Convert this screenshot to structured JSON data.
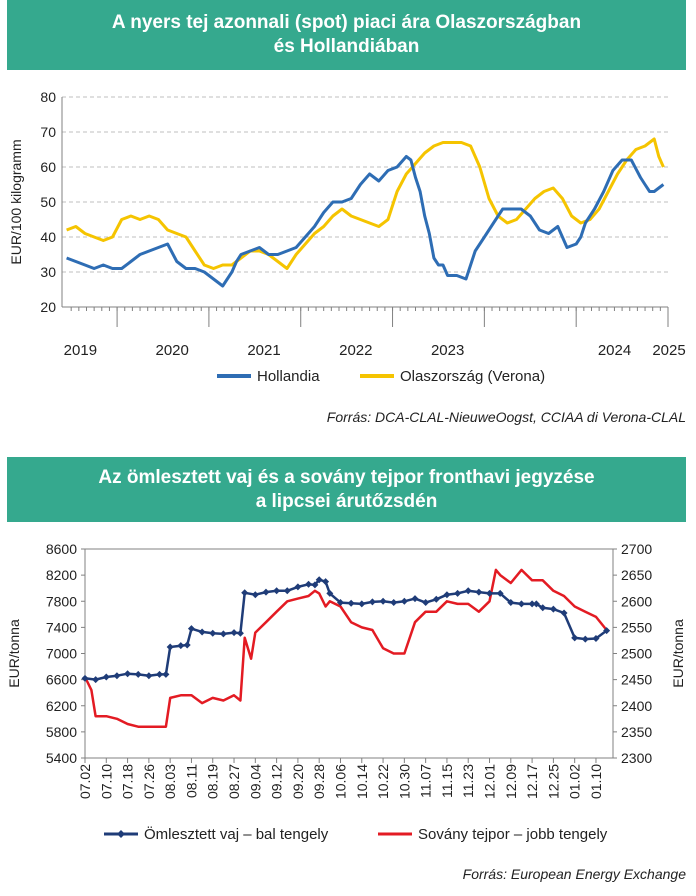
{
  "chart_data": [
    {
      "type": "line",
      "title": "A nyers tej azonnali (spot) piaci ára Olaszországban és Hollandiában",
      "title_lines": [
        "A nyers tej azonnali (spot) piaci ára Olaszországban",
        "és Hollandiában"
      ],
      "ylabel": "EUR/100 kilogramm",
      "ylim": [
        20,
        80
      ],
      "yticks": [
        20,
        30,
        40,
        50,
        60,
        70,
        80
      ],
      "x_labels": [
        "2019",
        "2020",
        "2021",
        "2022",
        "2023",
        "2024",
        "2025"
      ],
      "grid": true,
      "legend_position": "bottom",
      "source": "Forrás: DCA-CLAL-NieuweOogst, CCIAA di Verona-CLAL",
      "colors": {
        "Hollandia": "#2e6db4",
        "Olaszország (Verona)": "#f5c400"
      },
      "series": [
        {
          "name": "Hollandia",
          "x": [
            2018.45,
            2018.55,
            2018.65,
            2018.75,
            2018.85,
            2018.95,
            2019.05,
            2019.15,
            2019.25,
            2019.35,
            2019.45,
            2019.55,
            2019.65,
            2019.75,
            2019.85,
            2019.95,
            2020.05,
            2020.15,
            2020.25,
            2020.3,
            2020.35,
            2020.45,
            2020.55,
            2020.65,
            2020.75,
            2020.85,
            2020.95,
            2021.05,
            2021.15,
            2021.25,
            2021.35,
            2021.45,
            2021.55,
            2021.65,
            2021.75,
            2021.85,
            2021.95,
            2022.05,
            2022.15,
            2022.2,
            2022.25,
            2022.3,
            2022.35,
            2022.4,
            2022.45,
            2022.5,
            2022.55,
            2022.6,
            2022.7,
            2022.8,
            2022.9,
            2023.0,
            2023.1,
            2023.15,
            2023.2,
            2023.3,
            2023.4,
            2023.5,
            2023.6,
            2023.7,
            2023.8,
            2023.9,
            2024.0,
            2024.05,
            2024.1,
            2024.2,
            2024.3,
            2024.4,
            2024.5,
            2024.6,
            2024.7,
            2024.75,
            2024.8,
            2024.85,
            2024.9,
            2024.95
          ],
          "values": [
            34,
            33,
            32,
            31,
            32,
            31,
            31,
            33,
            35,
            36,
            37,
            38,
            33,
            31,
            31,
            30,
            28,
            26,
            30,
            33,
            35,
            36,
            37,
            35,
            35,
            36,
            37,
            40,
            43,
            47,
            50,
            50,
            51,
            55,
            58,
            56,
            59,
            60,
            63,
            62,
            57,
            53,
            46,
            41,
            34,
            32,
            32,
            29,
            29,
            28,
            36,
            40,
            44,
            46,
            48,
            48,
            48,
            46,
            42,
            41,
            43,
            37,
            38,
            40,
            44,
            48,
            53,
            59,
            62,
            62,
            57,
            55,
            53,
            53,
            54,
            55
          ]
        },
        {
          "name": "Olaszország (Verona)",
          "x": [
            2018.45,
            2018.55,
            2018.65,
            2018.75,
            2018.85,
            2018.95,
            2019.05,
            2019.15,
            2019.25,
            2019.35,
            2019.45,
            2019.55,
            2019.65,
            2019.75,
            2019.85,
            2019.95,
            2020.05,
            2020.15,
            2020.25,
            2020.35,
            2020.45,
            2020.55,
            2020.65,
            2020.75,
            2020.85,
            2020.95,
            2021.05,
            2021.15,
            2021.25,
            2021.35,
            2021.45,
            2021.55,
            2021.65,
            2021.75,
            2021.85,
            2021.95,
            2022.05,
            2022.15,
            2022.25,
            2022.35,
            2022.45,
            2022.55,
            2022.65,
            2022.75,
            2022.85,
            2022.95,
            2023.05,
            2023.15,
            2023.25,
            2023.35,
            2023.45,
            2023.55,
            2023.65,
            2023.75,
            2023.85,
            2023.95,
            2024.05,
            2024.15,
            2024.25,
            2024.35,
            2024.45,
            2024.55,
            2024.65,
            2024.75,
            2024.85,
            2024.9,
            2024.95
          ],
          "values": [
            42,
            43,
            41,
            40,
            39,
            40,
            45,
            46,
            45,
            46,
            45,
            42,
            41,
            40,
            36,
            32,
            31,
            32,
            32,
            34,
            36,
            36,
            35,
            33,
            31,
            35,
            38,
            41,
            43,
            46,
            48,
            46,
            45,
            44,
            43,
            45,
            53,
            58,
            61,
            64,
            66,
            67,
            67,
            67,
            66,
            60,
            51,
            46,
            44,
            45,
            48,
            51,
            53,
            54,
            51,
            46,
            44,
            45,
            48,
            53,
            58,
            62,
            65,
            66,
            68,
            63,
            60
          ]
        }
      ]
    },
    {
      "type": "line",
      "title": "Az ömlesztett vaj és a sovány tejpor fronthavi jegyzése a lipcsei árutőzsdén",
      "title_lines": [
        "Az ömlesztett vaj és a sovány tejpor fronthavi jegyzése",
        "a lipcsei árutőzsdén"
      ],
      "ylabel_left": "EUR/tonna",
      "ylabel_right": "EUR/tonna",
      "ylim_left": [
        5400,
        8600
      ],
      "yticks_left": [
        5400,
        5800,
        6200,
        6600,
        7000,
        7400,
        7800,
        8200,
        8600
      ],
      "ylim_right": [
        2300,
        2700
      ],
      "yticks_right": [
        2300,
        2350,
        2400,
        2450,
        2500,
        2550,
        2600,
        2650,
        2700
      ],
      "categories": [
        "07.02",
        "07.10",
        "07.18",
        "07.26",
        "08.03",
        "08.11",
        "08.19",
        "08.27",
        "09.04",
        "09.12",
        "09.20",
        "09.28",
        "10.06",
        "10.14",
        "10.22",
        "10.30",
        "11.07",
        "11.15",
        "11.23",
        "12.01",
        "12.09",
        "12.17",
        "12.25",
        "01.02",
        "01.10"
      ],
      "grid": false,
      "legend_position": "bottom",
      "source": "Forrás: European Energy Exchange",
      "colors": {
        "Ömlesztett vaj – bal tengely": "#1f3c78",
        "Sovány tejpor – jobb tengely": "#e31b23"
      },
      "series": [
        {
          "name": "Ömlesztett vaj – bal tengely",
          "axis": "left",
          "x": [
            0,
            0.5,
            1,
            1.5,
            2,
            2.5,
            3,
            3.5,
            3.8,
            4,
            4.5,
            4.8,
            5,
            5.5,
            6,
            6.5,
            7,
            7.3,
            7.5,
            8,
            8.5,
            9,
            9.5,
            10,
            10.5,
            10.8,
            11,
            11.3,
            11.5,
            12,
            12.5,
            13,
            13.5,
            14,
            14.5,
            15,
            15.5,
            16,
            16.5,
            17,
            17.5,
            18,
            18.5,
            19,
            19.5,
            20,
            20.5,
            21,
            21.2,
            21.5,
            22,
            22.5,
            23,
            23.5,
            24,
            24.5
          ],
          "values": [
            6620,
            6600,
            6640,
            6660,
            6690,
            6680,
            6660,
            6680,
            6680,
            7100,
            7120,
            7130,
            7380,
            7330,
            7310,
            7300,
            7320,
            7310,
            7930,
            7900,
            7940,
            7960,
            7960,
            8020,
            8060,
            8050,
            8130,
            8100,
            7920,
            7780,
            7770,
            7760,
            7790,
            7800,
            7780,
            7800,
            7840,
            7780,
            7830,
            7900,
            7920,
            7960,
            7940,
            7920,
            7920,
            7780,
            7760,
            7760,
            7760,
            7700,
            7680,
            7620,
            7240,
            7220,
            7230,
            7350
          ]
        },
        {
          "name": "Sovány tejpor – jobb tengely",
          "axis": "right",
          "x": [
            0,
            0.3,
            0.5,
            1,
            1.5,
            2,
            2.5,
            3,
            3.5,
            3.8,
            4,
            4.5,
            5,
            5.5,
            6,
            6.5,
            7,
            7.3,
            7.5,
            7.8,
            8,
            8.5,
            9,
            9.5,
            10,
            10.5,
            10.8,
            11,
            11.3,
            11.5,
            12,
            12.5,
            13,
            13.5,
            14,
            14.5,
            15,
            15.5,
            16,
            16.5,
            17,
            17.5,
            18,
            18.5,
            19,
            19.3,
            19.5,
            20,
            20.5,
            21,
            21.5,
            22,
            22.5,
            23,
            23.5,
            24,
            24.5
          ],
          "values": [
            2455,
            2430,
            2380,
            2380,
            2375,
            2365,
            2360,
            2360,
            2360,
            2360,
            2415,
            2420,
            2420,
            2405,
            2415,
            2410,
            2420,
            2410,
            2530,
            2490,
            2540,
            2560,
            2580,
            2600,
            2605,
            2610,
            2620,
            2615,
            2590,
            2600,
            2590,
            2560,
            2550,
            2545,
            2510,
            2500,
            2500,
            2560,
            2580,
            2580,
            2600,
            2595,
            2595,
            2580,
            2600,
            2660,
            2650,
            2635,
            2660,
            2640,
            2640,
            2620,
            2610,
            2590,
            2580,
            2570,
            2545
          ]
        }
      ]
    }
  ]
}
